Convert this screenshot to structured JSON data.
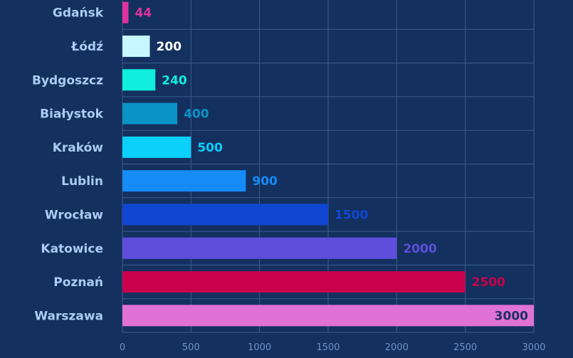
{
  "chart_data": {
    "type": "bar",
    "orientation": "horizontal",
    "title": "",
    "xlabel": "",
    "ylabel": "",
    "xlim": [
      0,
      3000
    ],
    "grid": true,
    "legend": "none",
    "categories": [
      "Gdańsk",
      "Łódź",
      "Bydgoszcz",
      "Białystok",
      "Kraków",
      "Lublin",
      "Wrocław",
      "Katowice",
      "Poznań",
      "Warszawa"
    ],
    "values": [
      44,
      200,
      240,
      400,
      500,
      900,
      1500,
      2000,
      2500,
      3000
    ],
    "value_labels": [
      "44",
      "200",
      "240",
      "400",
      "500",
      "900",
      "1500",
      "2000",
      "2500",
      "3000"
    ],
    "colors": [
      "#e0329f",
      "#c6f7ff",
      "#10eedd",
      "#0a93c6",
      "#0ad0fb",
      "#148bf6",
      "#1047d2",
      "#5d4fdc",
      "#c9004b",
      "#e072d5"
    ],
    "label_colors": [
      "#e0329f",
      "#ffffff",
      "#10eedd",
      "#0a93c6",
      "#0ad0fb",
      "#148bf6",
      "#1047d2",
      "#5d4fdc",
      "#c9004b",
      "#1c2f63"
    ],
    "xticks": [
      "0",
      "500",
      "1000",
      "1500",
      "2000",
      "2500",
      "3000"
    ],
    "background": "#14305f",
    "grid_color": "#3a5c8c"
  }
}
